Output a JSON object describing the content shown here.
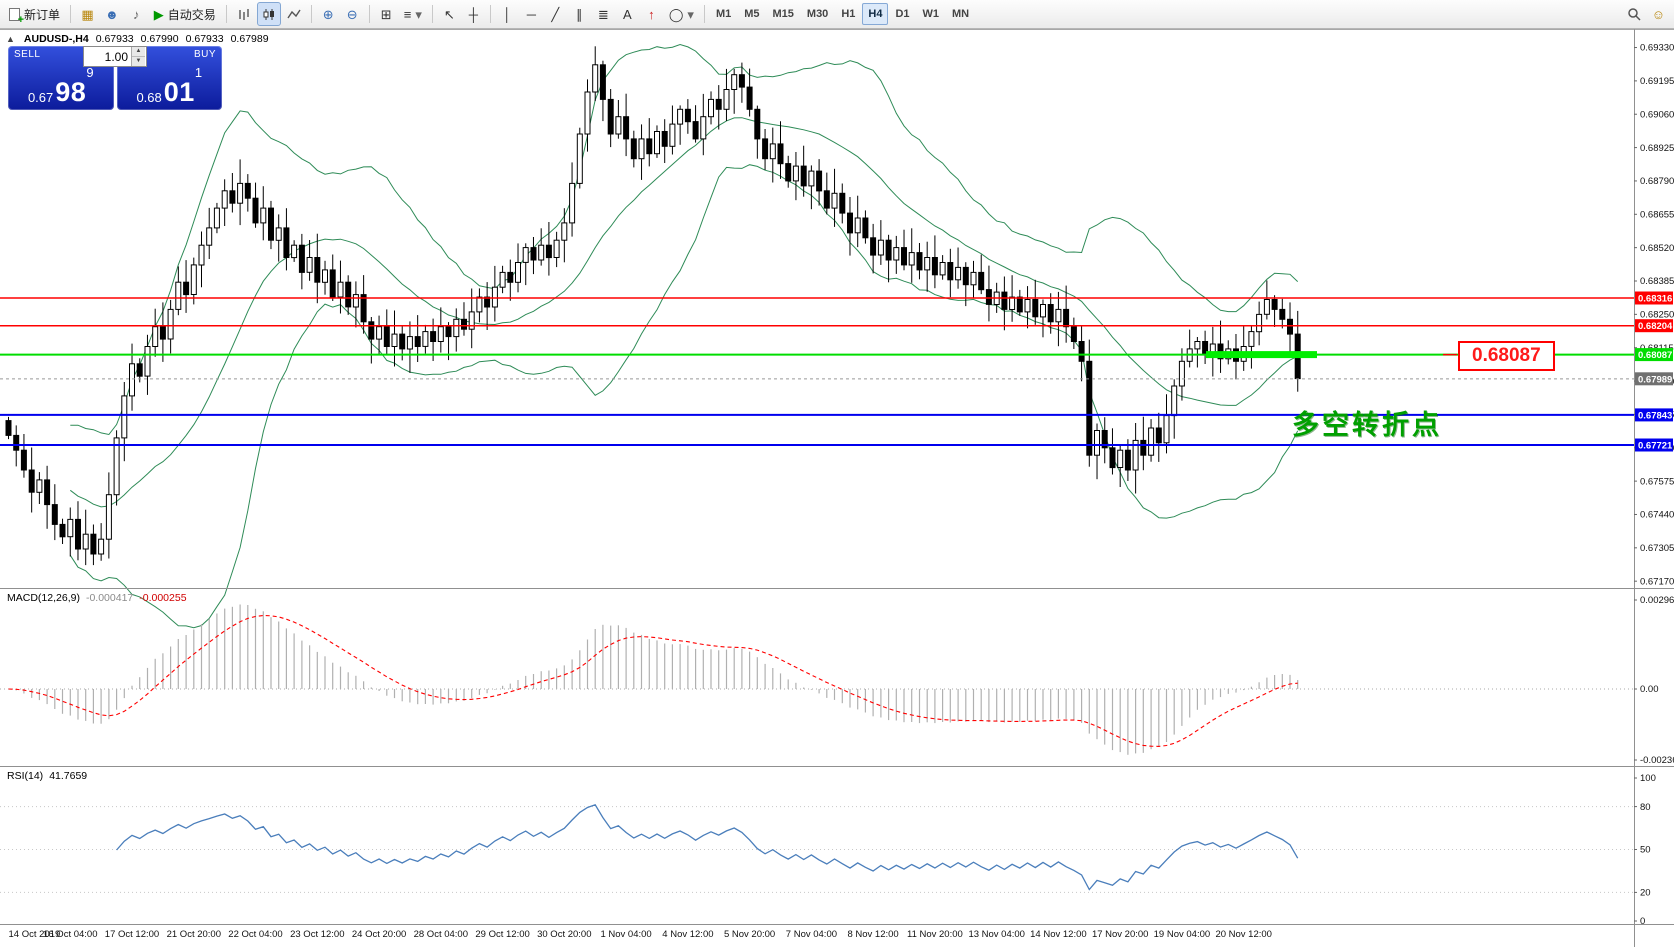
{
  "toolbar": {
    "new_order_label": "新订单",
    "autotrade_label": "自动交易",
    "timeframes": [
      "M1",
      "M5",
      "M15",
      "M30",
      "H1",
      "H4",
      "D1",
      "W1",
      "MN"
    ],
    "active_timeframe": "H4",
    "icons": {
      "charts": "▦",
      "profiles": "☻",
      "alerts": "♪",
      "autoplay": "▶",
      "zoom_in": "⊕",
      "zoom_out": "⊖",
      "tile": "⊞",
      "list": "≡",
      "cursor": "↖",
      "crosshair": "┼",
      "vline": "│",
      "hline": "─",
      "trend": "╱",
      "channel": "∥",
      "fibo": "≣",
      "text": "A",
      "arrow": "↑",
      "shape": "◯",
      "caret": "▾",
      "smiley": "☺",
      "up": "▲",
      "down": "▼",
      "collapse": "▲"
    }
  },
  "symbol_bar": {
    "symbol": "AUDUSD-,H4",
    "open": "0.67933",
    "high": "0.67990",
    "low": "0.67933",
    "close": "0.67989"
  },
  "trade_panel": {
    "sell_label": "SELL",
    "buy_label": "BUY",
    "volume": "1.00",
    "sell_price": {
      "prefix": "0.67",
      "big": "98",
      "sup": "9"
    },
    "buy_price": {
      "prefix": "0.68",
      "big": "01",
      "sup": "1"
    }
  },
  "chart_data": {
    "type": "candlestick",
    "symbol": "AUDUSD",
    "timeframe": "H4",
    "price_axis": {
      "min": 0.67142,
      "max": 0.69405,
      "ticks": [
        "0.69330",
        "0.69195",
        "0.69060",
        "0.68925",
        "0.68790",
        "0.68655",
        "0.68520",
        "0.68385",
        "0.68250",
        "0.68115",
        "0.67980",
        "0.67845",
        "0.67710",
        "0.67575",
        "0.67440",
        "0.67305",
        "0.67170"
      ]
    },
    "hlines": [
      {
        "price": 0.68316,
        "label": "0.68316",
        "color": "#ff0000",
        "width": 1.5
      },
      {
        "price": 0.68204,
        "label": "0.68204",
        "color": "#ff0000",
        "width": 1.5
      },
      {
        "price": 0.68087,
        "label": "0.68087",
        "color": "#00dd00",
        "width": 2
      },
      {
        "price": 0.67843,
        "label": "0.67843",
        "color": "#0000ee",
        "width": 2
      },
      {
        "price": 0.67721,
        "label": "0.67721",
        "color": "#0000ee",
        "width": 2
      }
    ],
    "current_price": 0.67989,
    "current_price_label": "0.67989",
    "highlight_segment": {
      "price": 0.68087,
      "color": "#00ee00"
    },
    "callout": {
      "text": "0.68087"
    },
    "annotation": {
      "text": "多空转折点"
    },
    "bollinger": {
      "period": 20,
      "deviation": 2,
      "color": "#2e8b57"
    },
    "closes": [
      0.6776,
      0.677,
      0.6762,
      0.6753,
      0.6758,
      0.6748,
      0.674,
      0.6735,
      0.6742,
      0.673,
      0.6736,
      0.6728,
      0.6734,
      0.6752,
      0.6775,
      0.6792,
      0.6805,
      0.68,
      0.6812,
      0.682,
      0.6815,
      0.6827,
      0.6838,
      0.6833,
      0.6845,
      0.6853,
      0.686,
      0.6868,
      0.6875,
      0.687,
      0.6878,
      0.6872,
      0.6862,
      0.6868,
      0.6855,
      0.686,
      0.6848,
      0.6853,
      0.6842,
      0.6848,
      0.6838,
      0.6843,
      0.6832,
      0.6838,
      0.6828,
      0.6833,
      0.6822,
      0.6815,
      0.682,
      0.6812,
      0.6817,
      0.6811,
      0.6816,
      0.6812,
      0.6818,
      0.6814,
      0.682,
      0.6816,
      0.6823,
      0.6819,
      0.6826,
      0.6832,
      0.6828,
      0.6836,
      0.6842,
      0.6838,
      0.6846,
      0.6852,
      0.6847,
      0.6853,
      0.6848,
      0.6855,
      0.6862,
      0.6878,
      0.6898,
      0.6915,
      0.6926,
      0.6912,
      0.6898,
      0.6905,
      0.6896,
      0.6888,
      0.6896,
      0.689,
      0.6899,
      0.6893,
      0.6902,
      0.6908,
      0.6903,
      0.6896,
      0.6905,
      0.6912,
      0.6908,
      0.6916,
      0.6922,
      0.6917,
      0.6908,
      0.6896,
      0.6888,
      0.6894,
      0.6886,
      0.6879,
      0.6885,
      0.6877,
      0.6883,
      0.6875,
      0.6868,
      0.6874,
      0.6866,
      0.6858,
      0.6864,
      0.6856,
      0.6849,
      0.6855,
      0.6847,
      0.6852,
      0.6845,
      0.685,
      0.6843,
      0.6848,
      0.6841,
      0.6846,
      0.6839,
      0.6844,
      0.6837,
      0.6842,
      0.6835,
      0.6829,
      0.6834,
      0.6827,
      0.6832,
      0.6826,
      0.6831,
      0.6824,
      0.6829,
      0.6822,
      0.6827,
      0.682,
      0.6814,
      0.6806,
      0.6768,
      0.6778,
      0.6771,
      0.6763,
      0.677,
      0.6762,
      0.6774,
      0.6768,
      0.6779,
      0.6773,
      0.6784,
      0.6796,
      0.6806,
      0.6811,
      0.6814,
      0.6809,
      0.6813,
      0.6807,
      0.6811,
      0.6806,
      0.6812,
      0.6818,
      0.6825,
      0.6831,
      0.6827,
      0.6823,
      0.6817,
      0.6799
    ],
    "time_labels": [
      "14 Oct 2019",
      "16 Oct 04:00",
      "17 Oct 12:00",
      "21 Oct 20:00",
      "22 Oct 04:00",
      "23 Oct 12:00",
      "24 Oct 20:00",
      "28 Oct 04:00",
      "29 Oct 12:00",
      "30 Oct 20:00",
      "1 Nov 04:00",
      "4 Nov 12:00",
      "5 Nov 20:00",
      "7 Nov 04:00",
      "8 Nov 12:00",
      "11 Nov 20:00",
      "13 Nov 04:00",
      "14 Nov 12:00",
      "17 Nov 20:00",
      "19 Nov 04:00",
      "20 Nov 12:00"
    ],
    "macd": {
      "header": "MACD(12,26,9)",
      "value1": "-0.000417",
      "value2": "-0.000255",
      "fast": 12,
      "slow": 26,
      "signal": 9,
      "scale": [
        "0.002965",
        "0.00",
        "-0.002363"
      ]
    },
    "rsi": {
      "header": "RSI(14)",
      "value": "41.7659",
      "period": 14,
      "scale": [
        "100",
        "80",
        "50",
        "20",
        "0"
      ]
    }
  }
}
